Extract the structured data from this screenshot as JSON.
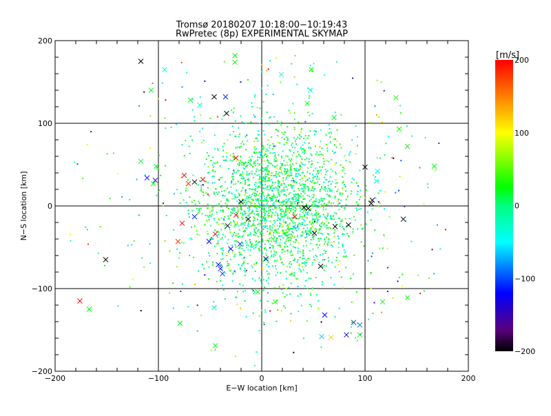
{
  "chart_data": {
    "type": "scatter",
    "title": "Tromsø 20180207  10:18:00−10:19:43",
    "subtitle": "RwPretec (8p) EXPERIMENTAL SKYMAP",
    "xlabel": "E−W location [km]",
    "ylabel": "N−S location [km]",
    "xlim": [
      -200,
      200
    ],
    "ylim": [
      -200,
      200
    ],
    "xticks": [
      -200,
      -100,
      0,
      100,
      200
    ],
    "xtick_labels": [
      "−200",
      "−100",
      "0",
      "100",
      "200"
    ],
    "yticks": [
      -200,
      -100,
      0,
      100,
      200
    ],
    "ytick_labels": [
      "−200",
      "−100",
      "0",
      "100",
      "200"
    ],
    "grid": true,
    "colorbar": {
      "label": "[m/s]",
      "range": [
        -200,
        200
      ],
      "ticks": [
        200,
        100,
        0,
        -100,
        -200
      ],
      "tick_labels": [
        "200",
        "100",
        "0",
        "−100",
        "−200"
      ],
      "stops": [
        {
          "v": -200,
          "c": "#000000"
        },
        {
          "v": -170,
          "c": "#5a0080"
        },
        {
          "v": -120,
          "c": "#0000ff"
        },
        {
          "v": -85,
          "c": "#0080ff"
        },
        {
          "v": -50,
          "c": "#00ffff"
        },
        {
          "v": 0,
          "c": "#00ff80"
        },
        {
          "v": 25,
          "c": "#00ff00"
        },
        {
          "v": 100,
          "c": "#ffff00"
        },
        {
          "v": 140,
          "c": "#ff9900"
        },
        {
          "v": 200,
          "c": "#ff0000"
        }
      ]
    },
    "cross_points": [
      [
        -117,
        175,
        -200
      ],
      [
        -94,
        165,
        -40
      ],
      [
        -107,
        140,
        20
      ],
      [
        -46,
        132,
        -200
      ],
      [
        -35,
        132,
        -110
      ],
      [
        -34,
        112,
        -200
      ],
      [
        -26,
        182,
        25
      ],
      [
        -26,
        174,
        25
      ],
      [
        -60,
        122,
        -30
      ],
      [
        -69,
        128,
        20
      ],
      [
        48,
        165,
        25
      ],
      [
        44,
        124,
        25
      ],
      [
        47,
        140,
        -40
      ],
      [
        19,
        159,
        -40
      ],
      [
        70,
        107,
        20
      ],
      [
        130,
        131,
        30
      ],
      [
        141,
        72,
        25
      ],
      [
        133,
        93,
        25
      ],
      [
        167,
        48,
        25
      ],
      [
        100,
        47,
        -200
      ],
      [
        112,
        42,
        -40
      ],
      [
        111,
        30,
        -40
      ],
      [
        107,
        7,
        -200
      ],
      [
        106,
        3,
        -200
      ],
      [
        137,
        -16,
        -200
      ],
      [
        -117,
        54,
        20
      ],
      [
        -102,
        48,
        20
      ],
      [
        -111,
        34,
        -120
      ],
      [
        -103,
        31,
        -120
      ],
      [
        -105,
        27,
        25
      ],
      [
        -75,
        37,
        200
      ],
      [
        -71,
        27,
        180
      ],
      [
        -57,
        32,
        200
      ],
      [
        -65,
        29,
        -200
      ],
      [
        -25,
        58,
        200
      ],
      [
        -20,
        5,
        -200
      ],
      [
        -13,
        -16,
        -200
      ],
      [
        -25,
        -11,
        200
      ],
      [
        -33,
        -24,
        -200
      ],
      [
        -77,
        -21,
        200
      ],
      [
        -65,
        -13,
        -110
      ],
      [
        -81,
        -43,
        180
      ],
      [
        -51,
        -43,
        -120
      ],
      [
        -45,
        -34,
        200
      ],
      [
        -30,
        -52,
        -120
      ],
      [
        -21,
        -46,
        -110
      ],
      [
        -42,
        -71,
        -120
      ],
      [
        -40,
        -76,
        -115
      ],
      [
        -38,
        -82,
        -100
      ],
      [
        -151,
        -65,
        -200
      ],
      [
        -176,
        -115,
        200
      ],
      [
        -167,
        -125,
        25
      ],
      [
        4,
        -64,
        -200
      ],
      [
        32,
        -13,
        200
      ],
      [
        41,
        -2,
        -200
      ],
      [
        45,
        -3,
        -200
      ],
      [
        51,
        -33,
        -200
      ],
      [
        71,
        -25,
        -200
      ],
      [
        84,
        -23,
        -200
      ],
      [
        57,
        -73,
        -200
      ],
      [
        61,
        -132,
        -120
      ],
      [
        89,
        -141,
        -110
      ],
      [
        95,
        -144,
        -90
      ],
      [
        82,
        -156,
        -120
      ],
      [
        58,
        -158,
        -60
      ],
      [
        67,
        -159,
        120
      ],
      [
        95,
        -156,
        25
      ],
      [
        117,
        -116,
        25
      ],
      [
        141,
        -111,
        25
      ],
      [
        13,
        -116,
        25
      ],
      [
        -4,
        -104,
        25
      ],
      [
        -46,
        -123,
        -30
      ],
      [
        -45,
        -169,
        25
      ],
      [
        -79,
        -142,
        25
      ]
    ],
    "dot_cloud": {
      "core": {
        "count": 2200,
        "center": [
          15,
          0
        ],
        "spread": [
          38,
          48
        ],
        "velocity_mean": 5,
        "velocity_sd": 35
      },
      "halo": {
        "count": 260,
        "radius": 190,
        "velocity_mean": 0,
        "velocity_sd": 90
      }
    }
  }
}
